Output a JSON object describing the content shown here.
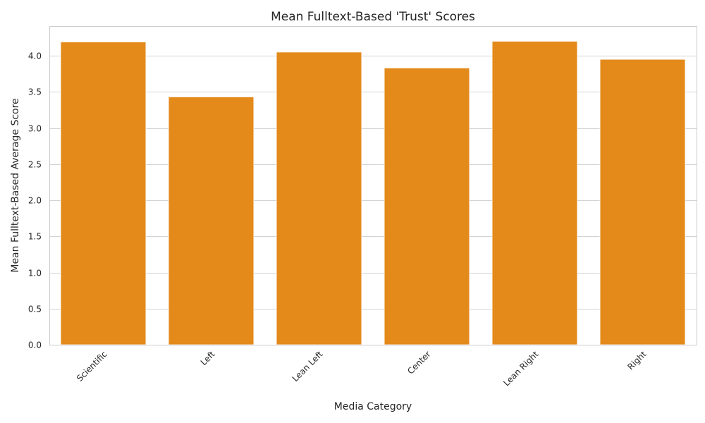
{
  "chart_data": {
    "type": "bar",
    "title": "Mean Fulltext-Based 'Trust' Scores",
    "xlabel": "Media Category",
    "ylabel": "Mean Fulltext-Based Average Score",
    "categories": [
      "Scientific",
      "Left",
      "Lean Left",
      "Center",
      "Lean Right",
      "Right"
    ],
    "values": [
      4.19,
      3.43,
      4.05,
      3.83,
      4.2,
      3.95
    ],
    "ylim": [
      0,
      4.41
    ],
    "yticks": [
      "0.0",
      "0.5",
      "1.0",
      "1.5",
      "2.0",
      "2.5",
      "3.0",
      "3.5",
      "4.0"
    ],
    "grid": "horizontal",
    "legend": "none",
    "bar_color": "#e38a1b"
  }
}
